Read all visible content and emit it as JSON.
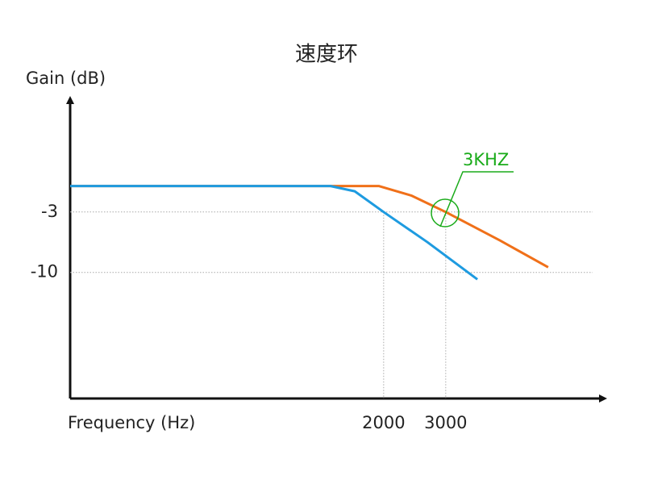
{
  "chart_data": {
    "type": "line",
    "title": "速度环",
    "y_label": "Gain (dB)",
    "x_label": "Frequency (Hz)",
    "xscale": "log",
    "xlim": [
      258,
      8040
    ],
    "xticks": [
      2000,
      3000
    ],
    "ylim": [
      -24.6,
      9.4
    ],
    "yticks": [
      -3,
      -10
    ],
    "grid": true,
    "series": [
      {
        "name": "orange",
        "color": "#f07019",
        "x": [
          258,
          1340,
          1936,
          2395,
          3000,
          4276,
          5860
        ],
        "values": [
          0,
          0,
          0,
          -1.1,
          -3,
          -6.3,
          -9.4
        ]
      },
      {
        "name": "blue",
        "color": "#1e9be0",
        "x": [
          258,
          1413,
          1656,
          2000,
          2661,
          3690
        ],
        "values": [
          0,
          0,
          -0.6,
          -3,
          -6.5,
          -10.8
        ]
      }
    ],
    "annotation": {
      "text": "3KHZ",
      "color": "#1aab1a"
    }
  }
}
